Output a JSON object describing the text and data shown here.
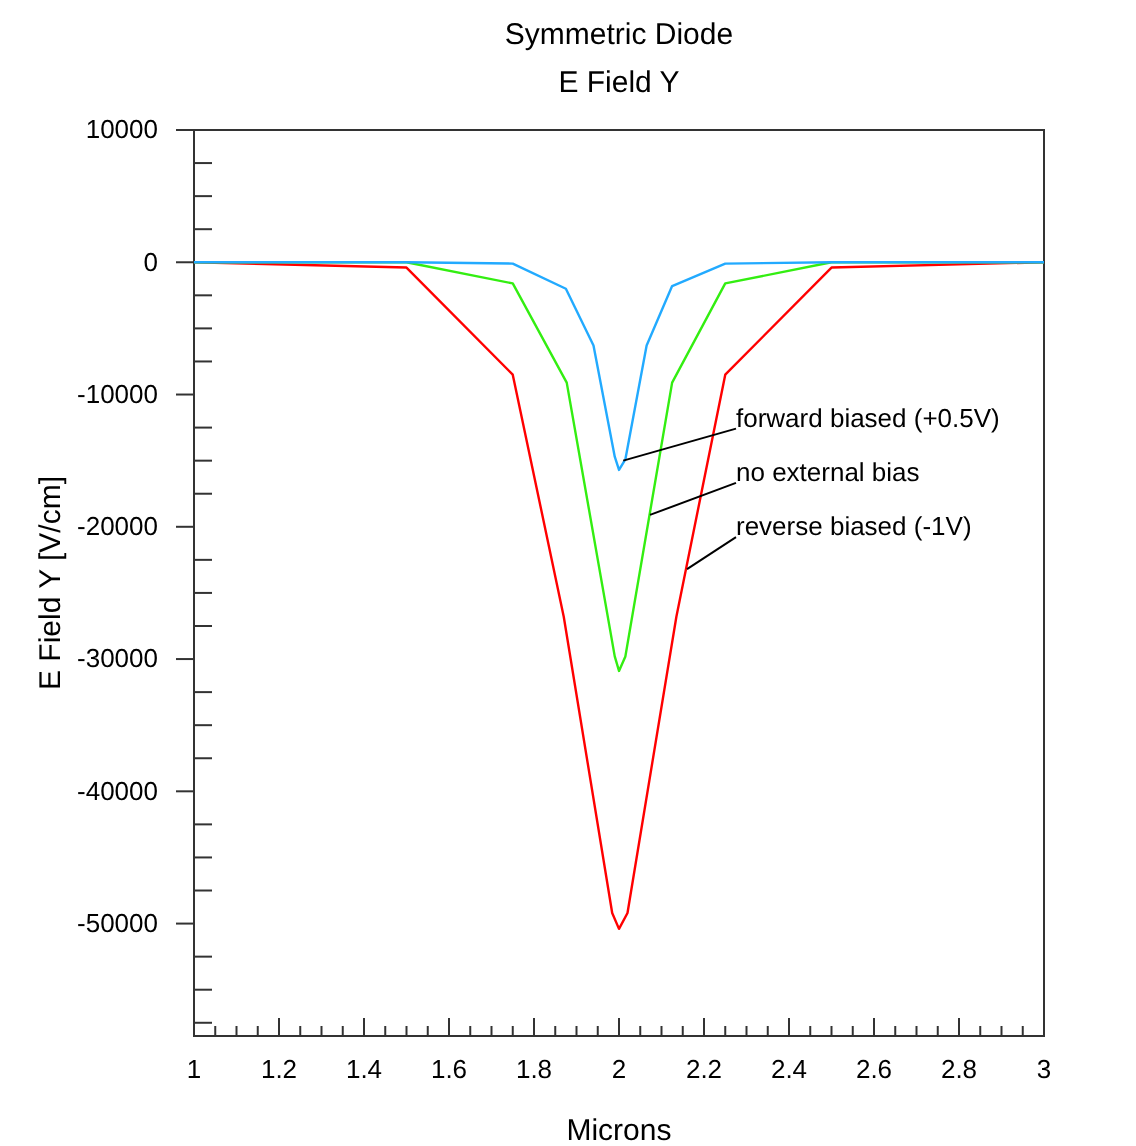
{
  "chart_data": {
    "type": "line",
    "title": "Symmetric Diode",
    "subtitle": "E Field Y",
    "xlabel": "Microns",
    "ylabel": "E Field  Y [V/cm]",
    "xlim": [
      1,
      3
    ],
    "ylim": [
      -58500,
      10000
    ],
    "xticks": [
      1,
      {
        "value": 1.05,
        "label": null
      },
      {
        "value": 1.1,
        "label": null
      },
      {
        "value": 1.15,
        "label": null
      },
      1.2,
      {
        "value": 1.25,
        "label": null
      },
      {
        "value": 1.3,
        "label": null
      },
      {
        "value": 1.35,
        "label": null
      },
      1.4,
      {
        "value": 1.45,
        "label": null
      },
      {
        "value": 1.5,
        "label": null
      },
      {
        "value": 1.55,
        "label": null
      },
      1.6,
      {
        "value": 1.65,
        "label": null
      },
      {
        "value": 1.7,
        "label": null
      },
      {
        "value": 1.75,
        "label": null
      },
      1.8,
      {
        "value": 1.85,
        "label": null
      },
      {
        "value": 1.9,
        "label": null
      },
      {
        "value": 1.95,
        "label": null
      },
      2,
      {
        "value": 2.05,
        "label": null
      },
      {
        "value": 2.1,
        "label": null
      },
      {
        "value": 2.15,
        "label": null
      },
      2.2,
      {
        "value": 2.25,
        "label": null
      },
      {
        "value": 2.3,
        "label": null
      },
      {
        "value": 2.35,
        "label": null
      },
      2.4,
      {
        "value": 2.45,
        "label": null
      },
      {
        "value": 2.5,
        "label": null
      },
      {
        "value": 2.55,
        "label": null
      },
      2.6,
      {
        "value": 2.65,
        "label": null
      },
      {
        "value": 2.7,
        "label": null
      },
      {
        "value": 2.75,
        "label": null
      },
      2.8,
      {
        "value": 2.85,
        "label": null
      },
      {
        "value": 2.9,
        "label": null
      },
      {
        "value": 2.95,
        "label": null
      },
      3
    ],
    "yticks": [
      10000,
      {
        "value": 7500,
        "label": null
      },
      {
        "value": 5000,
        "label": null
      },
      {
        "value": 2500,
        "label": null
      },
      0,
      {
        "value": -2500,
        "label": null
      },
      {
        "value": -5000,
        "label": null
      },
      {
        "value": -7500,
        "label": null
      },
      -10000,
      {
        "value": -12500,
        "label": null
      },
      {
        "value": -15000,
        "label": null
      },
      {
        "value": -17500,
        "label": null
      },
      -20000,
      {
        "value": -22500,
        "label": null
      },
      {
        "value": -25000,
        "label": null
      },
      {
        "value": -27500,
        "label": null
      },
      -30000,
      {
        "value": -32500,
        "label": null
      },
      {
        "value": -35000,
        "label": null
      },
      {
        "value": -37500,
        "label": null
      },
      -40000,
      {
        "value": -42500,
        "label": null
      },
      {
        "value": -45000,
        "label": null
      },
      {
        "value": -47500,
        "label": null
      },
      -50000,
      {
        "value": -52500,
        "label": null
      },
      {
        "value": -55000,
        "label": null
      },
      {
        "value": -57500,
        "label": null
      }
    ],
    "grid": false,
    "marker": "none",
    "line_style": "solid",
    "series": [
      {
        "color": "#ff0000",
        "x": [
          1,
          1.5,
          1.75,
          1.87,
          1.984,
          2,
          2.02,
          2.135,
          2.25,
          2.5,
          3
        ],
        "values": [
          0,
          -400,
          -8500,
          -26800,
          -49200,
          -50400,
          -49200,
          -26800,
          -8500,
          -400,
          0
        ]
      },
      {
        "color": "#33ee11",
        "x": [
          1,
          1.5,
          1.75,
          1.877,
          1.99,
          2,
          2.015,
          2.125,
          2.25,
          2.5,
          3
        ],
        "values": [
          0,
          0,
          -1600,
          -9100,
          -29800,
          -30900,
          -29800,
          -9100,
          -1600,
          0,
          0
        ]
      },
      {
        "color": "#22aaff",
        "x": [
          1,
          1.5,
          1.75,
          1.875,
          1.94,
          1.99,
          2,
          2.015,
          2.065,
          2.125,
          2.25,
          2.5,
          3
        ],
        "values": [
          0,
          0,
          -100,
          -2000,
          -6300,
          -14700,
          -15700,
          -14900,
          -6300,
          -1800,
          -100,
          0,
          0
        ]
      }
    ],
    "annotations": [
      {
        "text": "forward biased (+0.5V)",
        "x": 2.01,
        "y": -15000
      },
      {
        "text": "no external bias",
        "x": 2.073,
        "y": -19100
      },
      {
        "text": "reverse biased (-1V)",
        "x": 2.16,
        "y": -23200
      }
    ]
  }
}
